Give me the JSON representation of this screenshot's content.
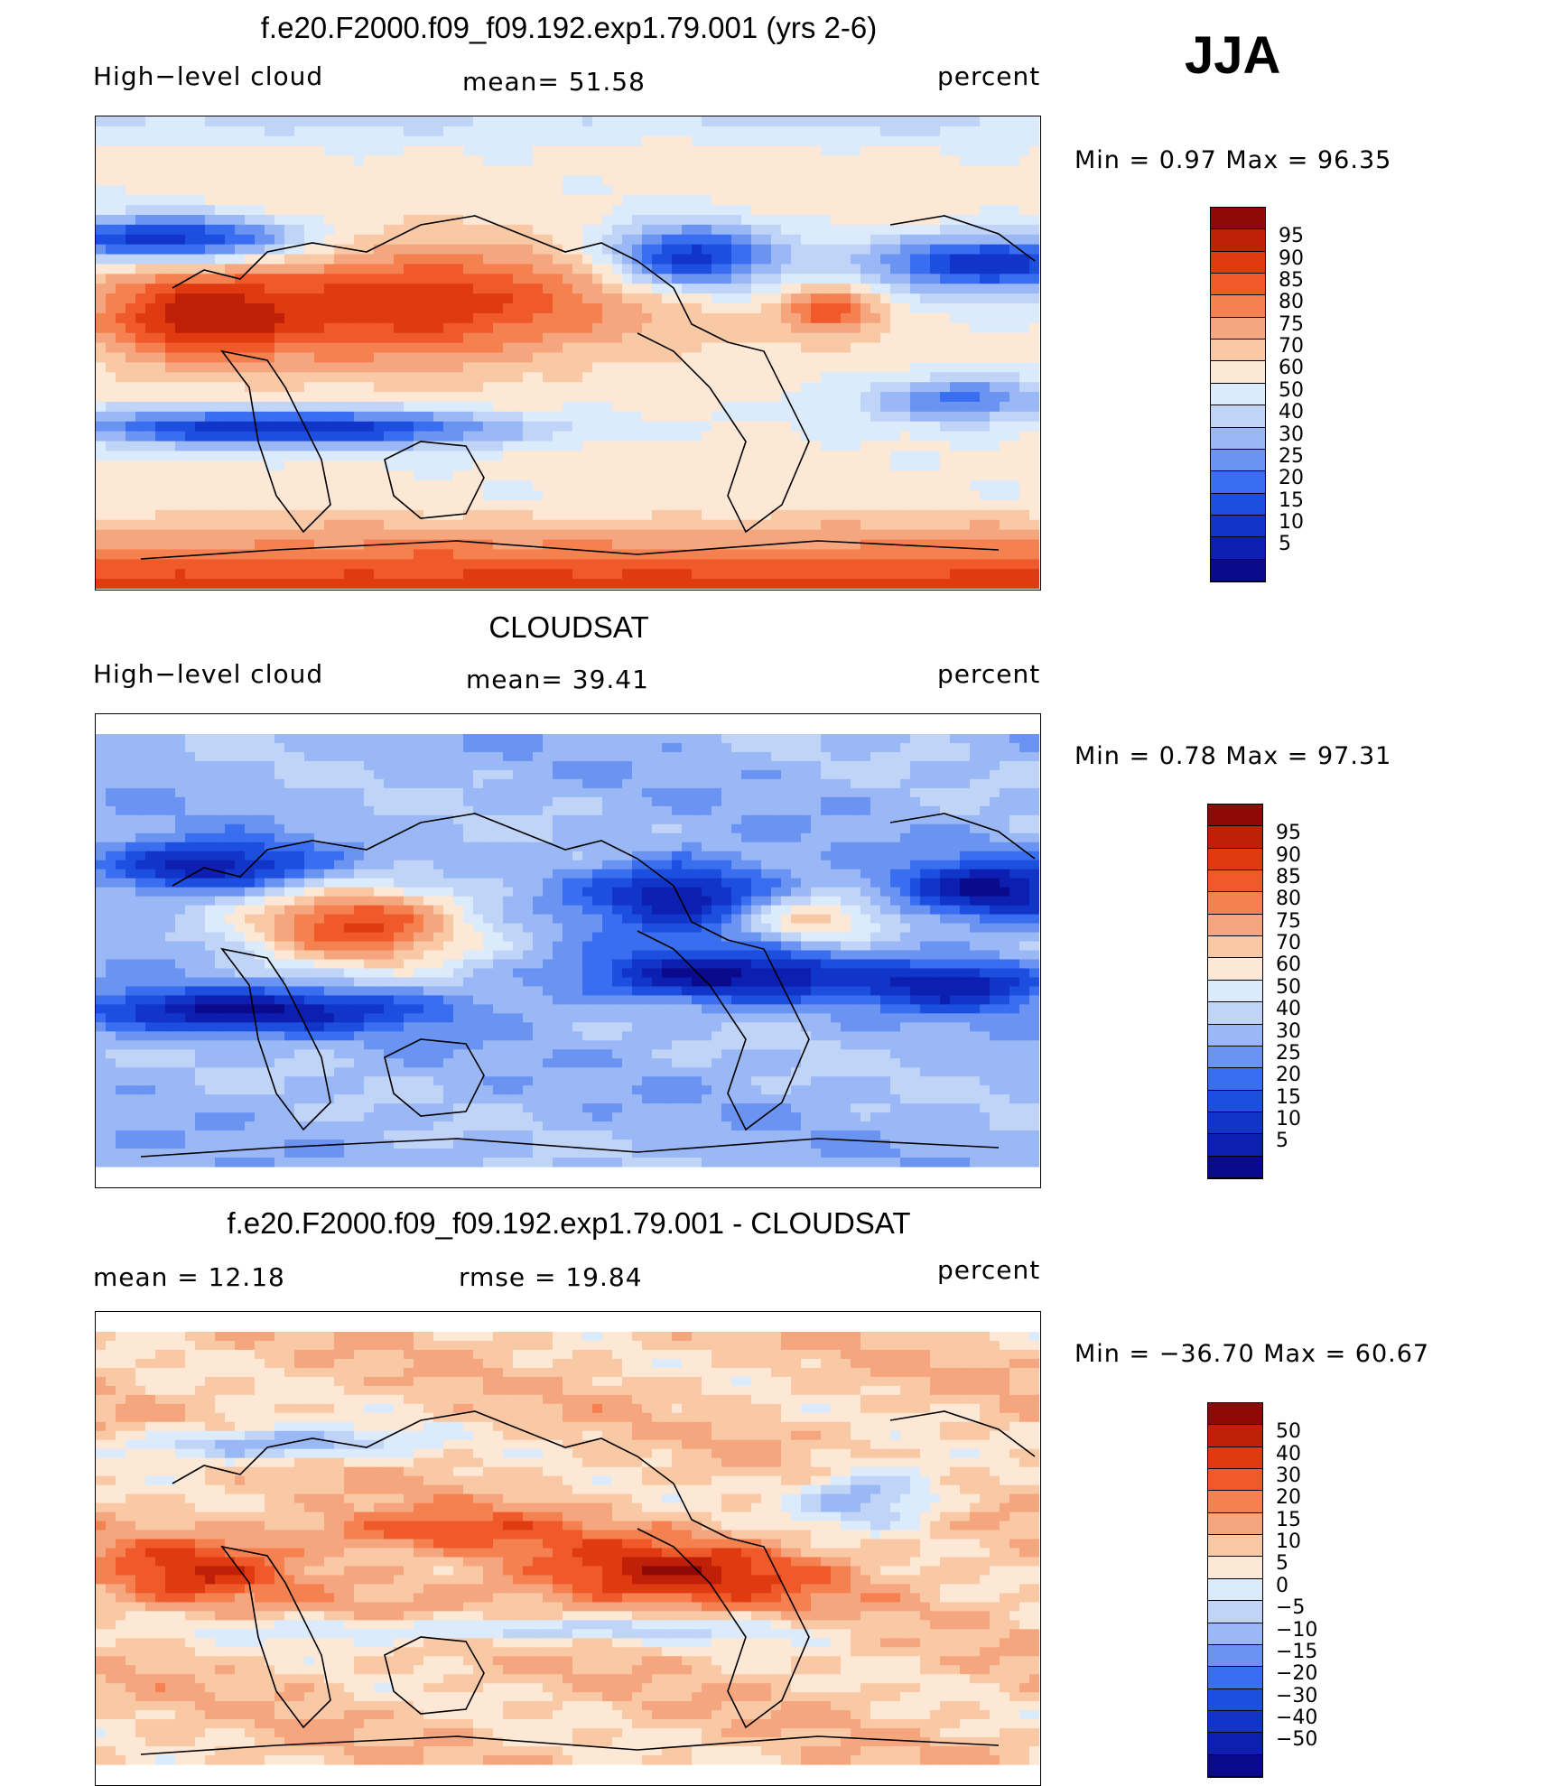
{
  "season": "JJA",
  "palettes": {
    "main": [
      "#0a0a8c",
      "#0d1fb0",
      "#1035c8",
      "#1c4ee0",
      "#3a6ef0",
      "#6b94f2",
      "#9ab8f5",
      "#c0d4f8",
      "#dcebfb",
      "#fde8d6",
      "#f9c9a6",
      "#f6a67e",
      "#f58050",
      "#f05a2a",
      "#e03a10",
      "#c02008",
      "#8e0a06"
    ],
    "diff": [
      "#0a0a8c",
      "#0d1fb0",
      "#1035c8",
      "#1c4ee0",
      "#3a6ef0",
      "#6b94f2",
      "#9ab8f5",
      "#c0d4f8",
      "#dcebfb",
      "#fde8d6",
      "#f9c9a6",
      "#f6a67e",
      "#f58050",
      "#f05a2a",
      "#e03a10",
      "#c02008",
      "#8e0a06"
    ]
  },
  "panels": [
    {
      "title": "f.e20.F2000.f09_f09.192.exp1.79.001 (yrs 2-6)",
      "left_label": "High−level cloud",
      "center_label": "mean=  51.58",
      "right_label": "percent",
      "min_max": "Min =    0.97 Max =   96.35",
      "colorbar_labels": [
        "95",
        "90",
        "85",
        "80",
        "75",
        "70",
        "60",
        "50",
        "40",
        "30",
        "25",
        "20",
        "15",
        "10",
        "5"
      ],
      "palette": "main",
      "field": "model"
    },
    {
      "title": "CLOUDSAT",
      "left_label": "High−level cloud",
      "center_label": "mean=  39.41",
      "right_label": "percent",
      "min_max": "Min =    0.78 Max =   97.31",
      "colorbar_labels": [
        "95",
        "90",
        "85",
        "80",
        "75",
        "70",
        "60",
        "50",
        "40",
        "30",
        "25",
        "20",
        "15",
        "10",
        "5"
      ],
      "palette": "main",
      "field": "obs"
    },
    {
      "title": "f.e20.F2000.f09_f09.192.exp1.79.001 - CLOUDSAT",
      "left_label": "mean =   12.18",
      "center_label": "rmse =   19.84",
      "right_label": "percent",
      "min_max": "Min = −36.70 Max =   60.67",
      "colorbar_labels": [
        "50",
        "40",
        "30",
        "20",
        "15",
        "10",
        "5",
        "0",
        "−5",
        "−10",
        "−15",
        "−20",
        "−30",
        "−40",
        "−50"
      ],
      "palette": "diff",
      "field": "diff"
    }
  ]
}
